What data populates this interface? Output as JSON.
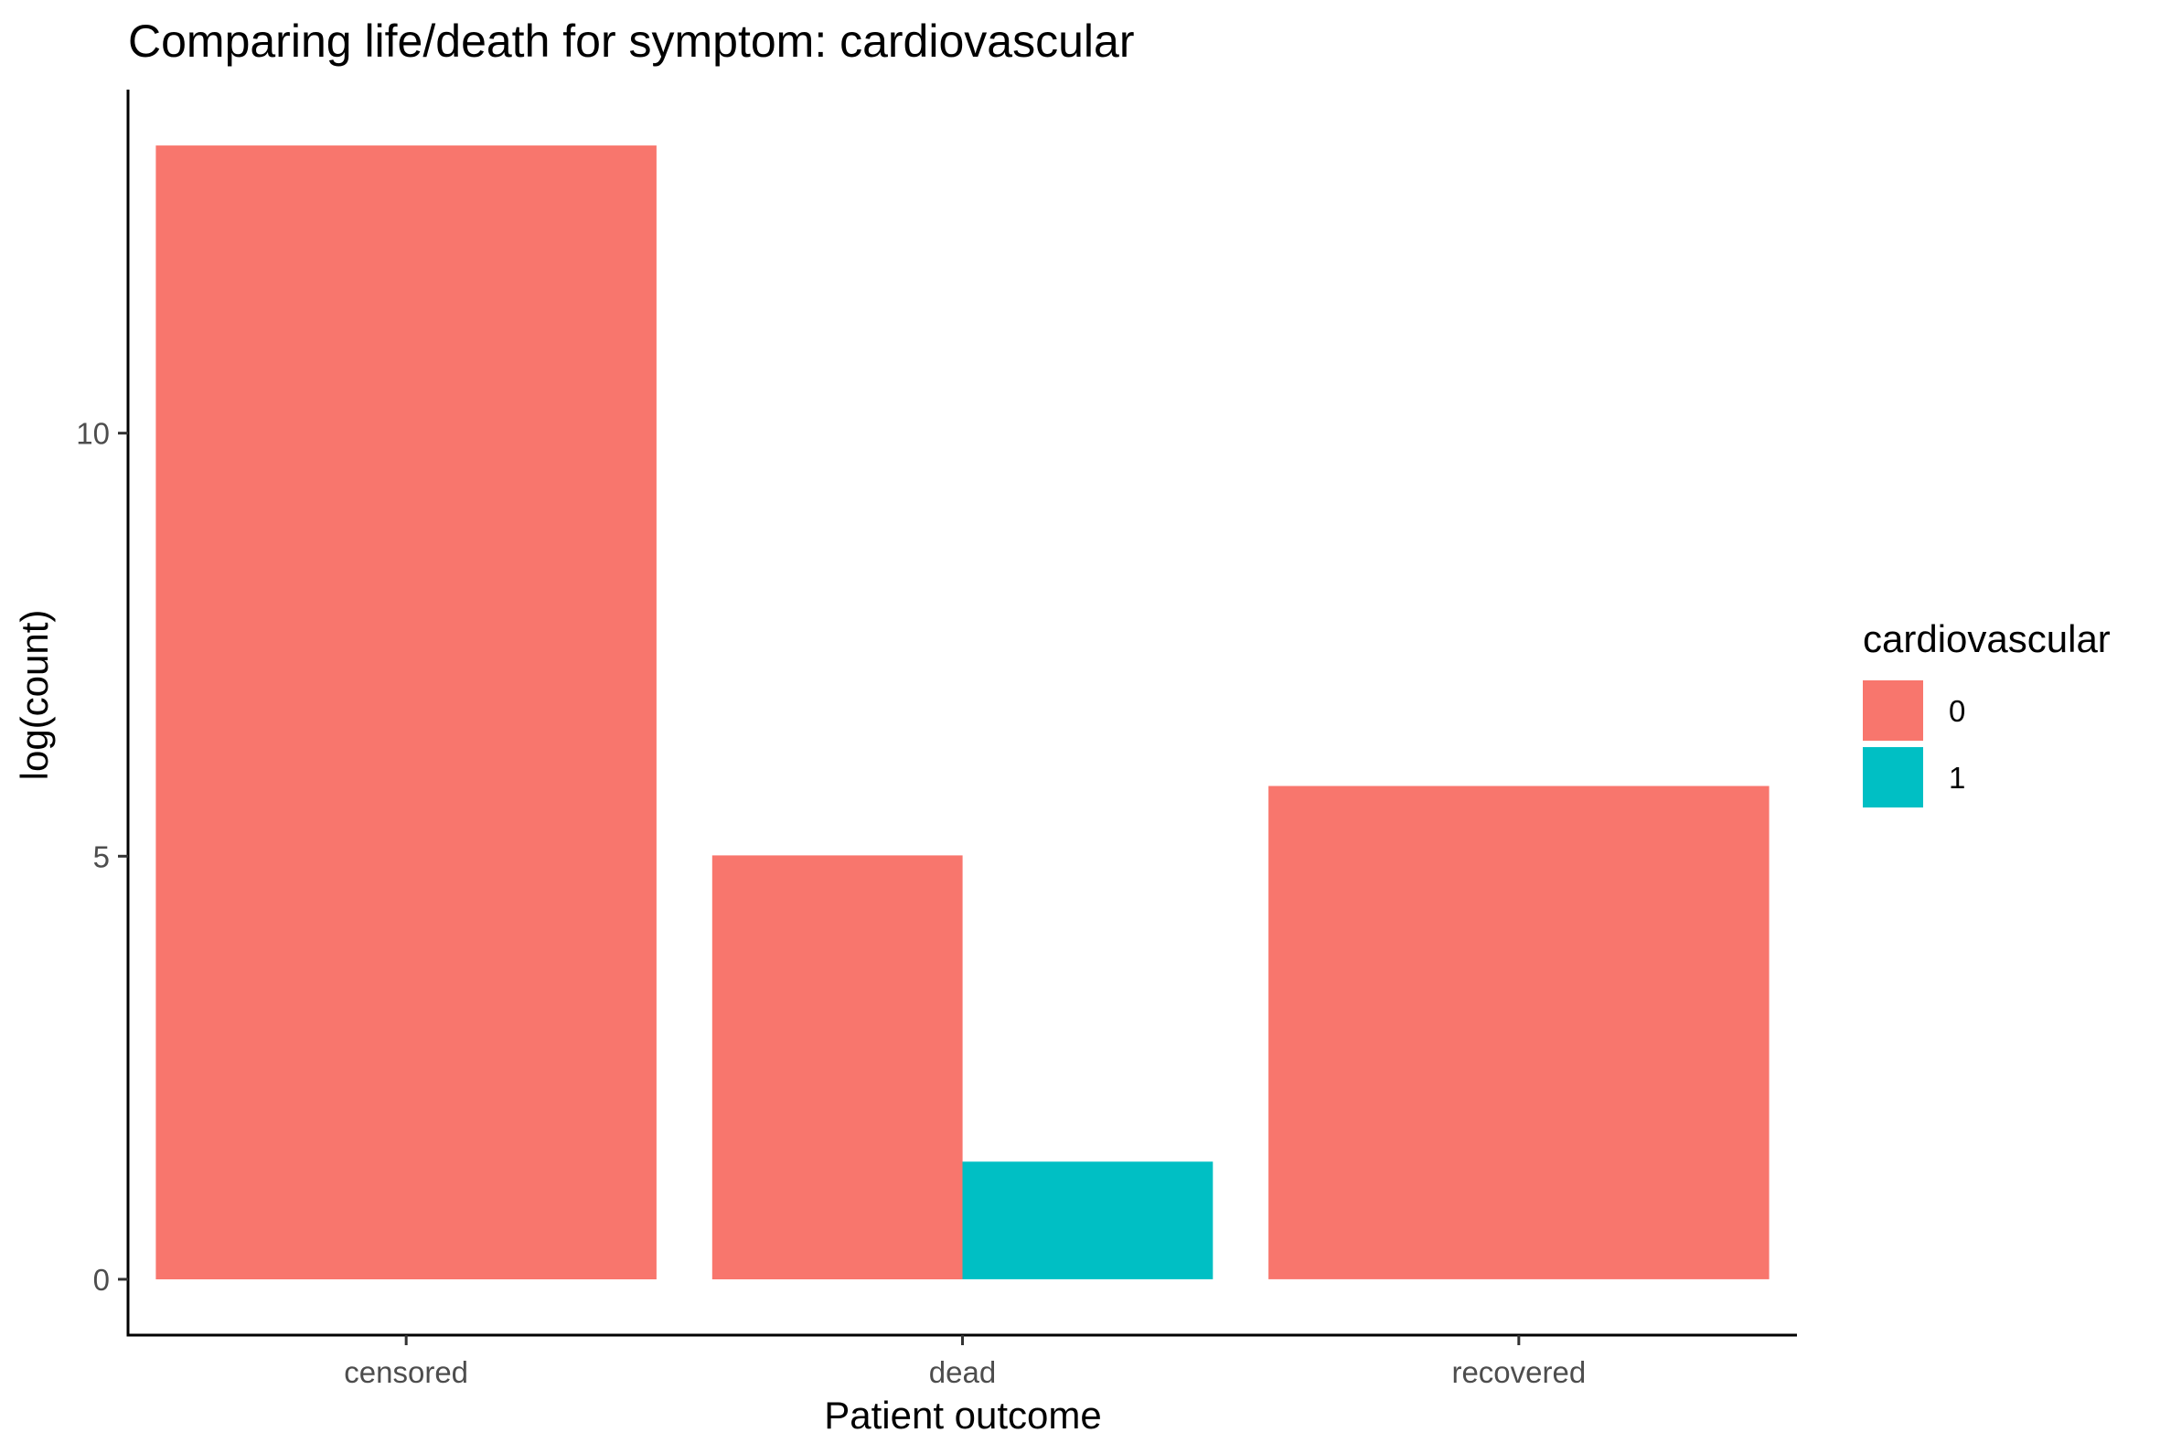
{
  "chart_data": {
    "type": "bar",
    "title": "Comparing life/death for symptom: cardiovascular",
    "xlabel": "Patient outcome",
    "ylabel": "log(count)",
    "categories": [
      "censored",
      "dead",
      "recovered"
    ],
    "y_ticks": [
      0,
      5,
      10
    ],
    "ylim": [
      -0.66,
      14.06
    ],
    "grid": false,
    "legend": {
      "title": "cardiovascular",
      "placement": "right",
      "entries": [
        {
          "key": "0",
          "label": "0",
          "color": "#F8766D"
        },
        {
          "key": "1",
          "label": "1",
          "color": "#00BFC4"
        }
      ]
    },
    "bars": [
      {
        "category": "censored",
        "group": "0",
        "value": 13.4
      },
      {
        "category": "dead",
        "group": "0",
        "value": 5.01
      },
      {
        "category": "dead",
        "group": "1",
        "value": 1.39
      },
      {
        "category": "recovered",
        "group": "0",
        "value": 5.83
      }
    ]
  }
}
